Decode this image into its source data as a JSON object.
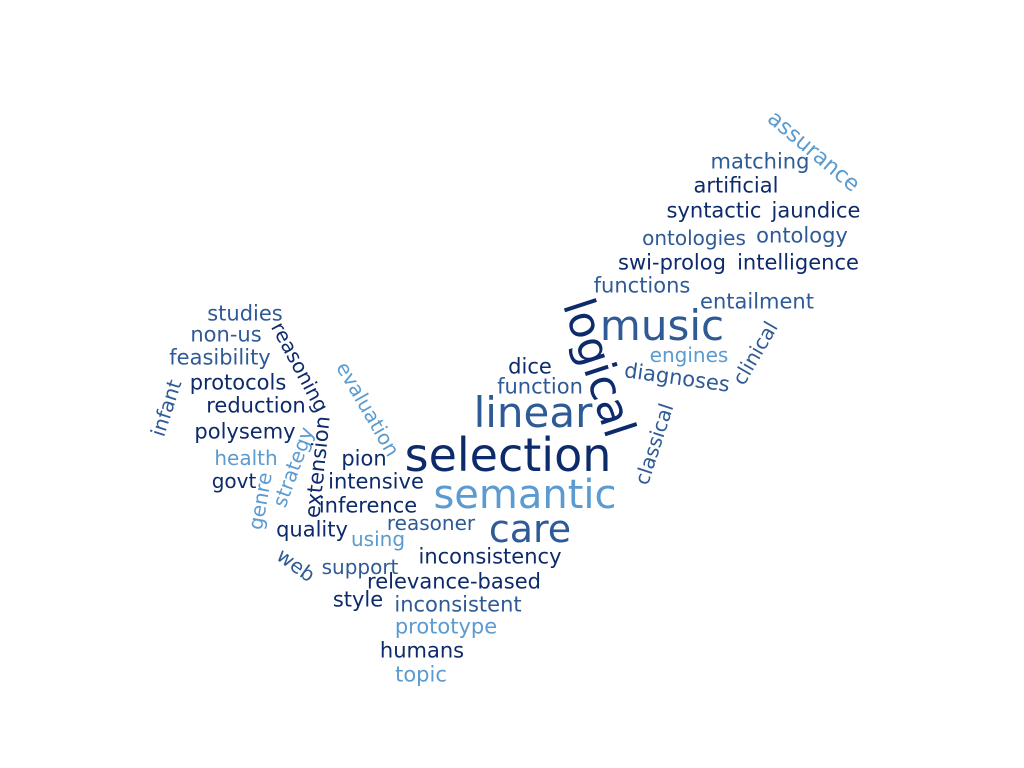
{
  "palette": {
    "navy": "#0d2a6b",
    "blue": "#2e5a96",
    "light": "#5b9bd0"
  },
  "words": [
    {
      "text": "assurance",
      "color": "light"
    },
    {
      "text": "matching",
      "color": "blue"
    },
    {
      "text": "artificial",
      "color": "navy"
    },
    {
      "text": "syntactic",
      "color": "navy"
    },
    {
      "text": "jaundice",
      "color": "navy"
    },
    {
      "text": "ontologies",
      "color": "blue"
    },
    {
      "text": "ontology",
      "color": "blue"
    },
    {
      "text": "swi-prolog",
      "color": "navy"
    },
    {
      "text": "intelligence",
      "color": "navy"
    },
    {
      "text": "functions",
      "color": "blue"
    },
    {
      "text": "entailment",
      "color": "blue"
    },
    {
      "text": "logical",
      "color": "navy"
    },
    {
      "text": "music",
      "color": "blue"
    },
    {
      "text": "clinical",
      "color": "blue"
    },
    {
      "text": "engines",
      "color": "light"
    },
    {
      "text": "dice",
      "color": "navy"
    },
    {
      "text": "diagnoses",
      "color": "blue"
    },
    {
      "text": "function",
      "color": "blue"
    },
    {
      "text": "linear",
      "color": "blue"
    },
    {
      "text": "classical",
      "color": "blue"
    },
    {
      "text": "selection",
      "color": "navy"
    },
    {
      "text": "semantic",
      "color": "light"
    },
    {
      "text": "care",
      "color": "blue"
    },
    {
      "text": "studies",
      "color": "blue"
    },
    {
      "text": "non-us",
      "color": "blue"
    },
    {
      "text": "reasoning",
      "color": "navy"
    },
    {
      "text": "feasibility",
      "color": "blue"
    },
    {
      "text": "evaluation",
      "color": "light"
    },
    {
      "text": "infant",
      "color": "blue"
    },
    {
      "text": "protocols",
      "color": "navy"
    },
    {
      "text": "reduction",
      "color": "navy"
    },
    {
      "text": "polysemy",
      "color": "navy"
    },
    {
      "text": "strategy",
      "color": "light"
    },
    {
      "text": "extension",
      "color": "navy"
    },
    {
      "text": "health",
      "color": "light"
    },
    {
      "text": "pion",
      "color": "navy"
    },
    {
      "text": "govt",
      "color": "navy"
    },
    {
      "text": "intensive",
      "color": "navy"
    },
    {
      "text": "genre",
      "color": "light"
    },
    {
      "text": "inference",
      "color": "navy"
    },
    {
      "text": "reasoner",
      "color": "blue"
    },
    {
      "text": "quality",
      "color": "navy"
    },
    {
      "text": "using",
      "color": "light"
    },
    {
      "text": "inconsistency",
      "color": "navy"
    },
    {
      "text": "web",
      "color": "blue"
    },
    {
      "text": "support",
      "color": "blue"
    },
    {
      "text": "relevance-based",
      "color": "navy"
    },
    {
      "text": "style",
      "color": "navy"
    },
    {
      "text": "inconsistent",
      "color": "blue"
    },
    {
      "text": "prototype",
      "color": "light"
    },
    {
      "text": "humans",
      "color": "navy"
    },
    {
      "text": "topic",
      "color": "light"
    }
  ]
}
